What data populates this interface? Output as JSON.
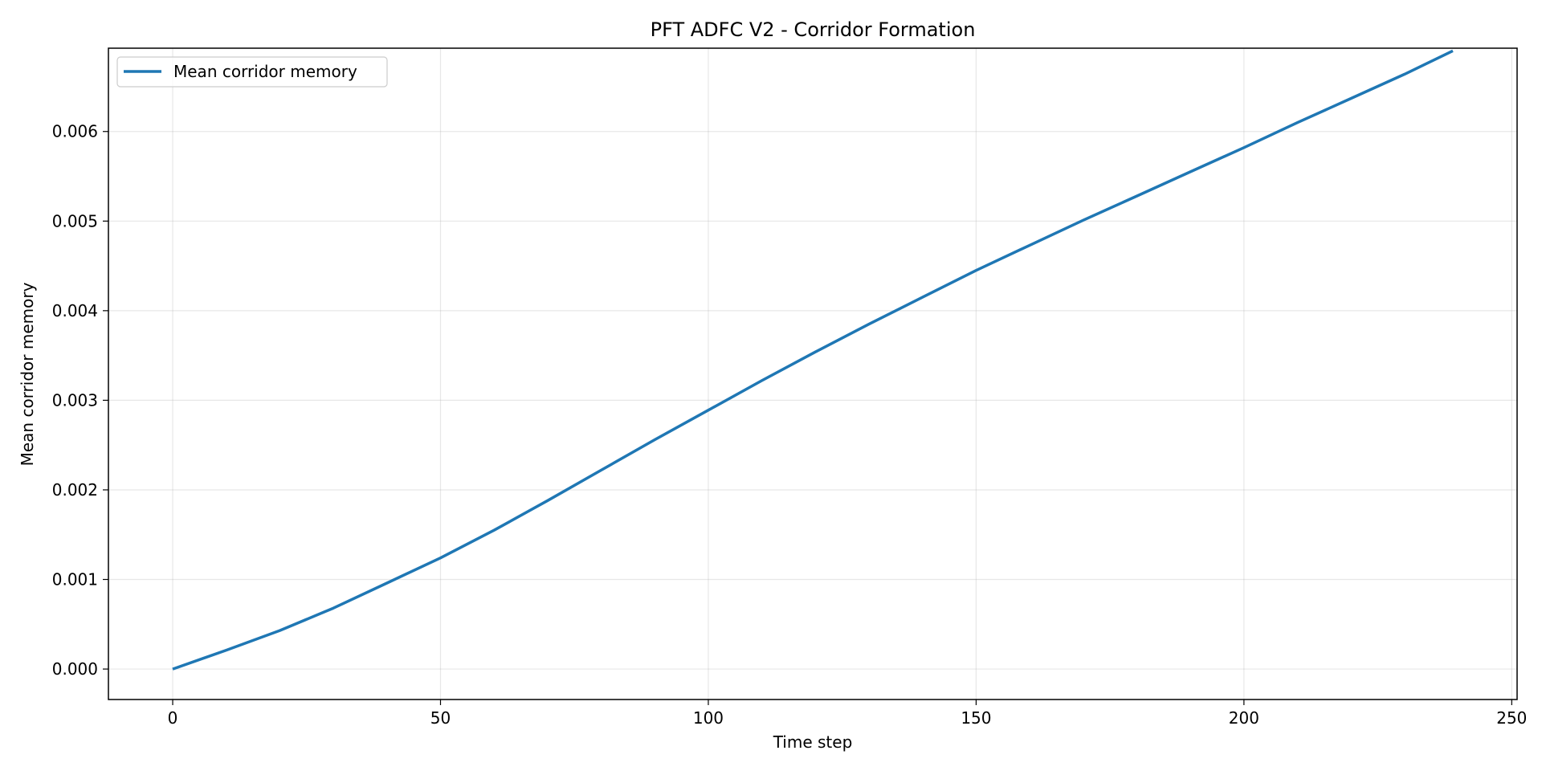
{
  "chart_data": {
    "type": "line",
    "title": "PFT ADFC V2 - Corridor Formation",
    "xlabel": "Time step",
    "ylabel": "Mean corridor memory",
    "xlim": [
      -12,
      251
    ],
    "ylim": [
      -0.00034,
      0.00693
    ],
    "xticks": [
      0,
      50,
      100,
      150,
      200,
      250
    ],
    "xtick_labels": [
      "0",
      "50",
      "100",
      "150",
      "200",
      "250"
    ],
    "yticks": [
      0.0,
      0.001,
      0.002,
      0.003,
      0.004,
      0.005,
      0.006
    ],
    "ytick_labels": [
      "0.000",
      "0.001",
      "0.002",
      "0.003",
      "0.004",
      "0.005",
      "0.006"
    ],
    "grid": true,
    "legend_position": "upper-left",
    "series": [
      {
        "name": "Mean corridor memory",
        "color": "#1f77b4",
        "x": [
          0,
          10,
          20,
          30,
          40,
          50,
          60,
          70,
          80,
          90,
          100,
          110,
          120,
          130,
          140,
          150,
          160,
          170,
          180,
          190,
          200,
          210,
          220,
          230,
          239
        ],
        "y": [
          0.0,
          0.00021,
          0.00043,
          0.00068,
          0.00096,
          0.00124,
          0.00155,
          0.00188,
          0.00222,
          0.00256,
          0.00289,
          0.00322,
          0.00354,
          0.00385,
          0.00415,
          0.00445,
          0.00473,
          0.00501,
          0.00528,
          0.00555,
          0.00582,
          0.0061,
          0.00637,
          0.00664,
          0.0069
        ]
      }
    ]
  }
}
